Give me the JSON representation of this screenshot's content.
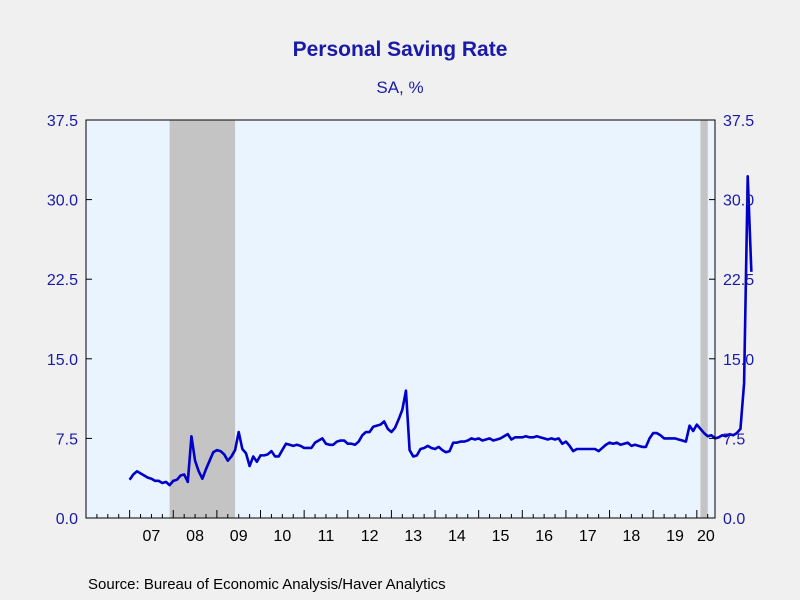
{
  "chart_data": {
    "type": "line",
    "title": "Personal Saving Rate",
    "subtitle": "SA, %",
    "source": "Source:  Bureau of Economic Analysis/Haver Analytics",
    "ylim": [
      0,
      37.5
    ],
    "y_ticks": [
      "0.0",
      "7.5",
      "15.0",
      "22.5",
      "30.0",
      "37.5"
    ],
    "y_tick_values": [
      0,
      7.5,
      15,
      22.5,
      30,
      37.5
    ],
    "x_range": [
      2006.0,
      2020.4167
    ],
    "x_labels": [
      "07",
      "08",
      "09",
      "10",
      "11",
      "12",
      "13",
      "14",
      "15",
      "16",
      "17",
      "18",
      "19",
      "20"
    ],
    "x_label_years": [
      2007,
      2008,
      2009,
      2010,
      2011,
      2012,
      2013,
      2014,
      2015,
      2016,
      2017,
      2018,
      2019,
      2020
    ],
    "recessions": [
      {
        "start": "2007-12",
        "end": "2009-06"
      },
      {
        "start": "2020-02",
        "end": "2020-04"
      }
    ],
    "colors": {
      "line": "#0000c8",
      "axis_text": "#1a1aa8",
      "plot_bg": "#eaf4ff",
      "recession": "#c4c4c4",
      "page_bg": "#f0f0f0"
    },
    "series": [
      {
        "start": "2007-01",
        "values": [
          3.6,
          4.1,
          4.4,
          4.2,
          4.0,
          3.8,
          3.7,
          3.5,
          3.5,
          3.3,
          3.4,
          3.1,
          3.5,
          3.6,
          4.0,
          4.1,
          3.4,
          7.7,
          5.4,
          4.4,
          3.7,
          4.6,
          5.4,
          6.2,
          6.4,
          6.3,
          6.0,
          5.4,
          5.8,
          6.4,
          8.1,
          6.5,
          6.1,
          4.9,
          5.8,
          5.3,
          5.9,
          5.9,
          6.0,
          6.3,
          5.8,
          5.8,
          6.4,
          7.0,
          6.9,
          6.8,
          6.9,
          6.8,
          6.6,
          6.6,
          6.6,
          7.1,
          7.3,
          7.5,
          7.0,
          6.9,
          6.9,
          7.2,
          7.3,
          7.3,
          7.0,
          7.0,
          6.9,
          7.2,
          7.8,
          8.1,
          8.1,
          8.6,
          8.7,
          8.8,
          9.1,
          8.4,
          8.1,
          8.5,
          9.3,
          10.2,
          12.0,
          6.4,
          5.8,
          5.9,
          6.5,
          6.6,
          6.8,
          6.6,
          6.5,
          6.7,
          6.4,
          6.2,
          6.3,
          7.1,
          7.1,
          7.2,
          7.2,
          7.3,
          7.5,
          7.4,
          7.5,
          7.3,
          7.4,
          7.5,
          7.3,
          7.4,
          7.5,
          7.7,
          7.9,
          7.4,
          7.6,
          7.6,
          7.6,
          7.7,
          7.6,
          7.6,
          7.7,
          7.6,
          7.5,
          7.4,
          7.5,
          7.4,
          7.5,
          7.0,
          7.2,
          6.8,
          6.3,
          6.5,
          6.5,
          6.5,
          6.5,
          6.5,
          6.5,
          6.3,
          6.6,
          6.9,
          7.1,
          7.0,
          7.1,
          6.9,
          7.0,
          7.1,
          6.8,
          6.9,
          6.8,
          6.7,
          6.7,
          7.5,
          8.0,
          8.0,
          7.8,
          7.5,
          7.5,
          7.5,
          7.5,
          7.4,
          7.3,
          7.2,
          8.7,
          8.2,
          8.8,
          8.4,
          8.0,
          7.7,
          7.8,
          7.5,
          7.6,
          7.8,
          7.7,
          7.9,
          7.8,
          8.0,
          8.4,
          12.7,
          32.2,
          23.2
        ]
      }
    ]
  }
}
